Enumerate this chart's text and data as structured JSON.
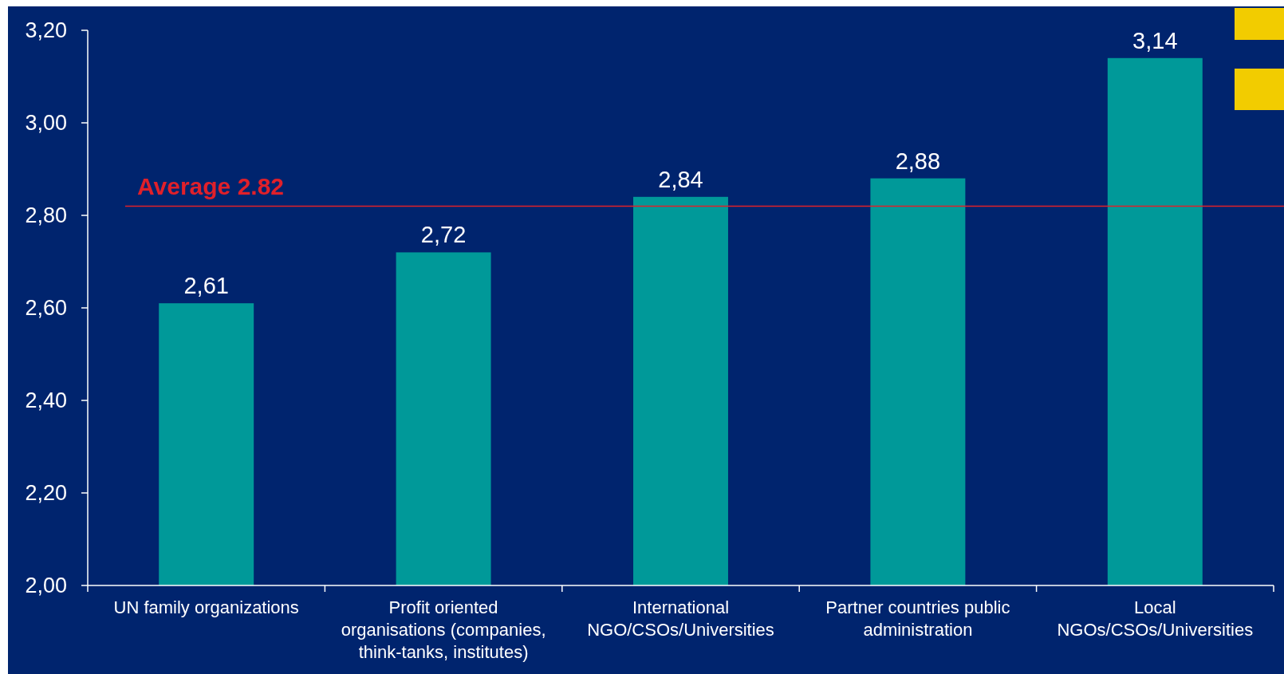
{
  "chart_data": {
    "type": "bar",
    "categories": [
      "UN family organizations",
      "Profit oriented organisations  (companies, think-tanks, institutes)",
      "International NGO/CSOs/Universities",
      "Partner countries public administration",
      "Local NGOs/CSOs/Universities"
    ],
    "values": [
      2.61,
      2.72,
      2.84,
      2.88,
      3.14
    ],
    "value_labels": [
      "2,61",
      "2,72",
      "2,84",
      "2,88",
      "3,14"
    ],
    "color": "#009999",
    "ylim": [
      2,
      3.2
    ],
    "yticks": [
      {
        "value": 2,
        "label": "2,00"
      },
      {
        "value": 2.2,
        "label": "2,20"
      },
      {
        "value": 2.4,
        "label": "2,40"
      },
      {
        "value": 2.6,
        "label": "2,60"
      },
      {
        "value": 2.8,
        "label": "2,80"
      },
      {
        "value": 3,
        "label": "3,00"
      },
      {
        "value": 3.2,
        "label": "3,20"
      }
    ],
    "ref_lines": [
      {
        "axis": "y",
        "value": 2.82,
        "label": "Average 2.82",
        "color": "#e0202a"
      }
    ],
    "grid": false
  }
}
